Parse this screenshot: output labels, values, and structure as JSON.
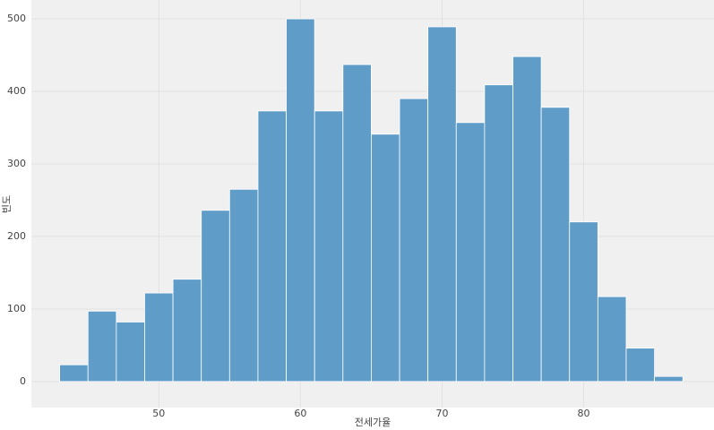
{
  "chart_data": {
    "type": "histogram",
    "x_label": "전세가율",
    "y_label": "빈도",
    "bins": [
      43,
      45,
      47,
      49,
      51,
      53,
      55,
      57,
      59,
      61,
      63,
      65,
      67,
      69,
      71,
      73,
      75,
      77,
      79,
      81,
      83,
      85,
      87
    ],
    "counts": [
      23,
      97,
      82,
      122,
      141,
      236,
      265,
      373,
      500,
      373,
      437,
      341,
      390,
      489,
      357,
      409,
      448,
      378,
      220,
      117,
      46,
      7
    ],
    "color": "#5f9dc8",
    "xlim": [
      41,
      89.2
    ],
    "ylim": [
      -36,
      526
    ],
    "xticks": [
      50,
      60,
      70,
      80
    ],
    "yticks": [
      0,
      100,
      200,
      300,
      400,
      500
    ],
    "grid": true
  }
}
